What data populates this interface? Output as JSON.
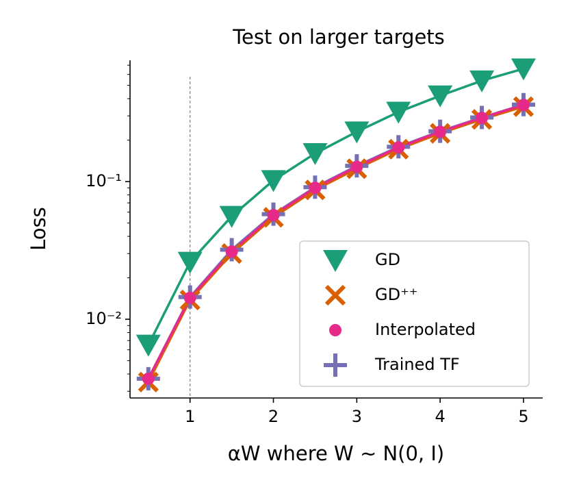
{
  "chart_data": {
    "type": "line",
    "title": "Test on larger targets",
    "x_label": "αW   where W ∼ N(0, I)",
    "y_label": "Loss",
    "x": [
      0.5,
      1,
      1.5,
      2,
      2.5,
      3,
      3.5,
      4,
      4.5,
      5
    ],
    "series": [
      {
        "name": "GD",
        "color": "#1b9e77",
        "marker": "triangle-down",
        "values": [
          0.0065,
          0.026,
          0.056,
          0.102,
          0.16,
          0.23,
          0.32,
          0.42,
          0.54,
          0.66
        ]
      },
      {
        "name": "GD⁺⁺",
        "color": "#d95f02",
        "marker": "x",
        "values": [
          0.0035,
          0.0138,
          0.03,
          0.055,
          0.087,
          0.124,
          0.172,
          0.224,
          0.283,
          0.35
        ]
      },
      {
        "name": "Interpolated",
        "color": "#e7298a",
        "marker": "circle",
        "values": [
          0.0037,
          0.0143,
          0.031,
          0.057,
          0.09,
          0.128,
          0.177,
          0.23,
          0.29,
          0.36
        ]
      },
      {
        "name": "Trained TF",
        "color": "#7570b3",
        "marker": "plus",
        "values": [
          0.0037,
          0.0145,
          0.032,
          0.058,
          0.091,
          0.13,
          0.179,
          0.232,
          0.292,
          0.362
        ]
      }
    ],
    "xlim": [
      0.28,
      5.23
    ],
    "ylim": [
      0.00268,
      0.76
    ],
    "xticks": [
      1,
      2,
      3,
      4,
      5
    ],
    "yticks": [
      {
        "value": 0.01,
        "label": "10⁻²"
      },
      {
        "value": 0.1,
        "label": "10⁻¹"
      }
    ],
    "y_scale": "log",
    "vline": 1,
    "legend": "lower right"
  }
}
